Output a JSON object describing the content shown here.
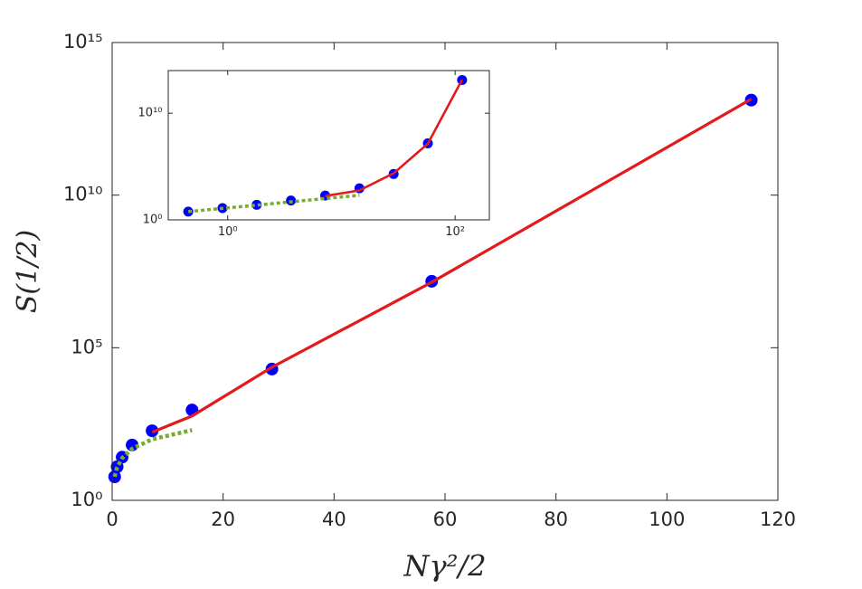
{
  "chart_data": [
    {
      "type": "scatter",
      "xlabel": "Nγ²/2",
      "ylabel": "S(1/2)",
      "xlim": [
        0,
        120
      ],
      "xticks": [
        0,
        20,
        40,
        60,
        80,
        100,
        120
      ],
      "ylim": [
        1,
        1000000000000000.0
      ],
      "yscale": "log",
      "yticks": [
        {
          "value": 1,
          "label": "10⁰"
        },
        {
          "value": 100000,
          "label": "10⁵"
        },
        {
          "value": 10000000000,
          "label": "10¹⁰"
        },
        {
          "value": 1000000000000000.0,
          "label": "10¹⁵"
        }
      ],
      "series": [
        {
          "style": "markers",
          "color": "#0000ff",
          "x": [
            0.45,
            0.9,
            1.8,
            3.6,
            7.2,
            14.4,
            28.8,
            57.6,
            115.2
          ],
          "values": [
            5.9,
            12.6,
            26,
            65,
            190,
            910,
            20000,
            15000000,
            13000000000000
          ]
        },
        {
          "style": "line",
          "color": "#e31a1c",
          "x": [
            7.2,
            14.4,
            28.8,
            57.6,
            115.2
          ],
          "values": [
            170,
            580,
            23000,
            14000000,
            14000000000000
          ]
        },
        {
          "style": "dotted",
          "color": "#77ac30",
          "x": [
            0.45,
            0.9,
            1.8,
            3.6,
            7.2,
            14.4
          ],
          "values": [
            5.9,
            12,
            24,
            49,
            100,
            200
          ]
        }
      ]
    },
    {
      "type": "scatter",
      "xlim": [
        0.3,
        200
      ],
      "xscale": "log",
      "xticks": [
        {
          "value": 1,
          "label": "10⁰"
        },
        {
          "value": 100,
          "label": "10²"
        }
      ],
      "ylim": [
        1,
        100000000000000.0
      ],
      "yscale": "log",
      "yticks": [
        {
          "value": 1,
          "label": "10⁰"
        },
        {
          "value": 10000000000,
          "label": "10¹⁰"
        }
      ],
      "series": [
        {
          "style": "markers",
          "color": "#0000ff",
          "x": [
            0.45,
            0.9,
            1.8,
            3.6,
            7.2,
            14.4,
            28.8,
            57.6,
            115.2
          ],
          "values": [
            5.9,
            12.6,
            26,
            65,
            190,
            910,
            20000,
            15000000,
            13000000000000
          ]
        },
        {
          "style": "line",
          "color": "#e31a1c",
          "x": [
            7.2,
            14.4,
            28.8,
            57.6,
            115.2
          ],
          "values": [
            170,
            580,
            23000,
            14000000,
            14000000000000
          ]
        },
        {
          "style": "dotted",
          "color": "#77ac30",
          "x": [
            0.45,
            0.9,
            1.8,
            3.6,
            7.2,
            14.4
          ],
          "values": [
            5.9,
            12,
            24,
            49,
            100,
            200
          ]
        }
      ]
    }
  ]
}
